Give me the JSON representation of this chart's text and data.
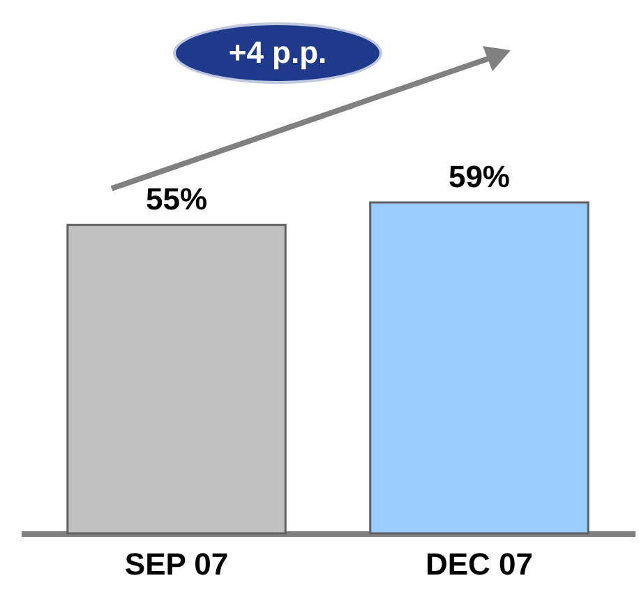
{
  "chart_data": {
    "type": "bar",
    "categories": [
      "SEP 07",
      "DEC 07"
    ],
    "values": [
      55,
      59
    ],
    "value_labels": [
      "55%",
      "59%"
    ],
    "colors": [
      "#c0c0c0",
      "#99ccff"
    ],
    "legend": false,
    "annotations": [
      "+4 p.p."
    ]
  }
}
